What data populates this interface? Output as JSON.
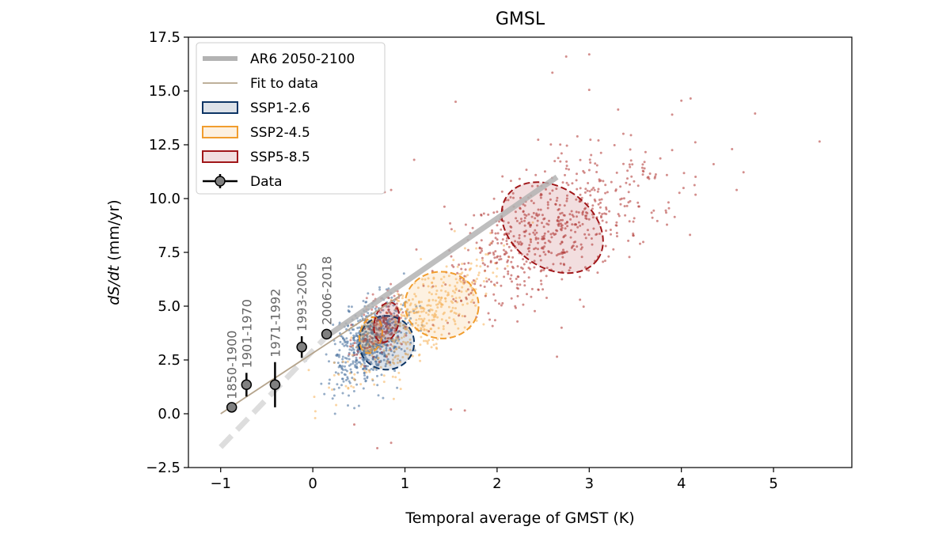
{
  "chart_data": {
    "type": "scatter",
    "title": "GMSL",
    "xlabel": "Temporal average of GMST (K)",
    "ylabel": "dS/dt (mm/yr)",
    "xlim": [
      -1.35,
      5.85
    ],
    "ylim": [
      -2.5,
      17.5
    ],
    "xticks": [
      -1,
      0,
      1,
      2,
      3,
      4,
      5
    ],
    "xtick_labels": [
      "−1",
      "0",
      "1",
      "2",
      "3",
      "4",
      "5"
    ],
    "yticks": [
      -2.5,
      0.0,
      2.5,
      5.0,
      7.5,
      10.0,
      12.5,
      15.0,
      17.5
    ],
    "ytick_labels": [
      "−2.5",
      "0.0",
      "2.5",
      "5.0",
      "7.5",
      "10.0",
      "12.5",
      "15.0",
      "17.5"
    ],
    "legend": {
      "position": "upper-left",
      "entries": [
        {
          "label": "AR6 2050-2100",
          "kind": "thick-line",
          "color": "#b3b3b3"
        },
        {
          "label": "Fit to data",
          "kind": "thin-line",
          "color": "#b5a48c"
        },
        {
          "label": "SSP1-2.6",
          "kind": "patch",
          "color": "#0d3565"
        },
        {
          "label": "SSP2-4.5",
          "kind": "patch",
          "color": "#f19d2e"
        },
        {
          "label": "SSP5-8.5",
          "kind": "patch",
          "color": "#a01619"
        },
        {
          "label": "Data",
          "kind": "errorbar-marker",
          "color": "#000000"
        }
      ]
    },
    "ar6_line": {
      "x": [
        0.15,
        2.65
      ],
      "y": [
        3.6,
        11.0
      ],
      "color": "#b3b3b3"
    },
    "ar6_line_extension": {
      "x": [
        -1.0,
        0.15
      ],
      "y": [
        -1.55,
        3.6
      ],
      "style": "dashed",
      "color": "#dddddd"
    },
    "fit_line": {
      "x": [
        -1.0,
        0.97
      ],
      "y": [
        0.0,
        5.55
      ],
      "color": "#b5a48c"
    },
    "data_points": [
      {
        "label": "1850-1900",
        "x": -0.88,
        "y": 0.3,
        "yerr": 0.15
      },
      {
        "label": "1901-1970",
        "x": -0.72,
        "y": 1.35,
        "yerr": 0.55
      },
      {
        "label": "1971-1992",
        "x": -0.41,
        "y": 1.35,
        "yerr": 1.05
      },
      {
        "label": "1993-2005",
        "x": -0.12,
        "y": 3.1,
        "yerr": 0.5
      },
      {
        "label": "2006-2018",
        "x": 0.15,
        "y": 3.7,
        "yerr": 0.2
      }
    ],
    "ellipses": [
      {
        "name": "SSP1-2.6",
        "cx": 0.8,
        "cy": 3.3,
        "rx": 0.3,
        "ry": 1.25,
        "angle": 5,
        "color": "#0d3565"
      },
      {
        "name": "SSP2-4.5",
        "cx": 1.4,
        "cy": 5.05,
        "rx": 0.4,
        "ry": 1.55,
        "angle": 5,
        "color": "#f19d2e"
      },
      {
        "name": "SSP5-8.5",
        "cx": 2.6,
        "cy": 8.65,
        "rx": 0.6,
        "ry": 1.85,
        "angle": 35,
        "color": "#a01619"
      },
      {
        "name": "SSP2-4.5 inner",
        "cx": 0.63,
        "cy": 3.65,
        "rx": 0.12,
        "ry": 0.85,
        "angle": 12,
        "color": "#f19d2e"
      },
      {
        "name": "SSP5-8.5 inner",
        "cx": 0.8,
        "cy": 4.25,
        "rx": 0.13,
        "ry": 0.95,
        "angle": 14,
        "color": "#a01619"
      }
    ],
    "scatter_clouds": [
      {
        "name": "SSP1-2.6",
        "color": "#5076a1",
        "cx": 0.62,
        "cy": 3.4,
        "sx": 0.2,
        "sy": 1.0,
        "rho": 0.45,
        "n": 650
      },
      {
        "name": "SSP2-4.5",
        "color": "#f6b865",
        "cx": 1.15,
        "cy": 4.3,
        "sx": 0.42,
        "sy": 1.6,
        "rho": 0.8,
        "n": 450
      },
      {
        "name": "SSP5-8.5 low",
        "color": "#c0504d",
        "cx": 0.72,
        "cy": 4.1,
        "sx": 0.14,
        "sy": 0.8,
        "rho": 0.5,
        "n": 140
      },
      {
        "name": "SSP5-8.5 high",
        "color": "#b5423f",
        "cx": 2.55,
        "cy": 8.5,
        "sx": 0.6,
        "sy": 1.65,
        "rho": 0.6,
        "n": 650
      }
    ],
    "outliers": [
      [
        2.75,
        16.6
      ],
      [
        3.0,
        16.7
      ],
      [
        2.6,
        15.85
      ],
      [
        3.0,
        15.05
      ],
      [
        1.55,
        14.5
      ],
      [
        4.1,
        14.65
      ],
      [
        4.0,
        14.55
      ],
      [
        4.8,
        13.95
      ],
      [
        3.9,
        13.9
      ],
      [
        5.5,
        12.65
      ],
      [
        4.55,
        12.3
      ],
      [
        3.9,
        12.25
      ],
      [
        4.35,
        11.6
      ],
      [
        4.6,
        10.4
      ],
      [
        1.1,
        11.8
      ],
      [
        0.85,
        10.4
      ],
      [
        0.78,
        10.3
      ],
      [
        2.7,
        12.1
      ],
      [
        3.1,
        12.7
      ],
      [
        2.9,
        5.3
      ],
      [
        2.7,
        4.0
      ],
      [
        2.65,
        2.65
      ],
      [
        1.5,
        0.2
      ],
      [
        1.65,
        0.15
      ],
      [
        0.85,
        -1.35
      ],
      [
        0.7,
        -1.6
      ],
      [
        0.45,
        -0.5
      ],
      [
        3.3,
        11.2
      ],
      [
        3.6,
        11.4
      ]
    ]
  }
}
